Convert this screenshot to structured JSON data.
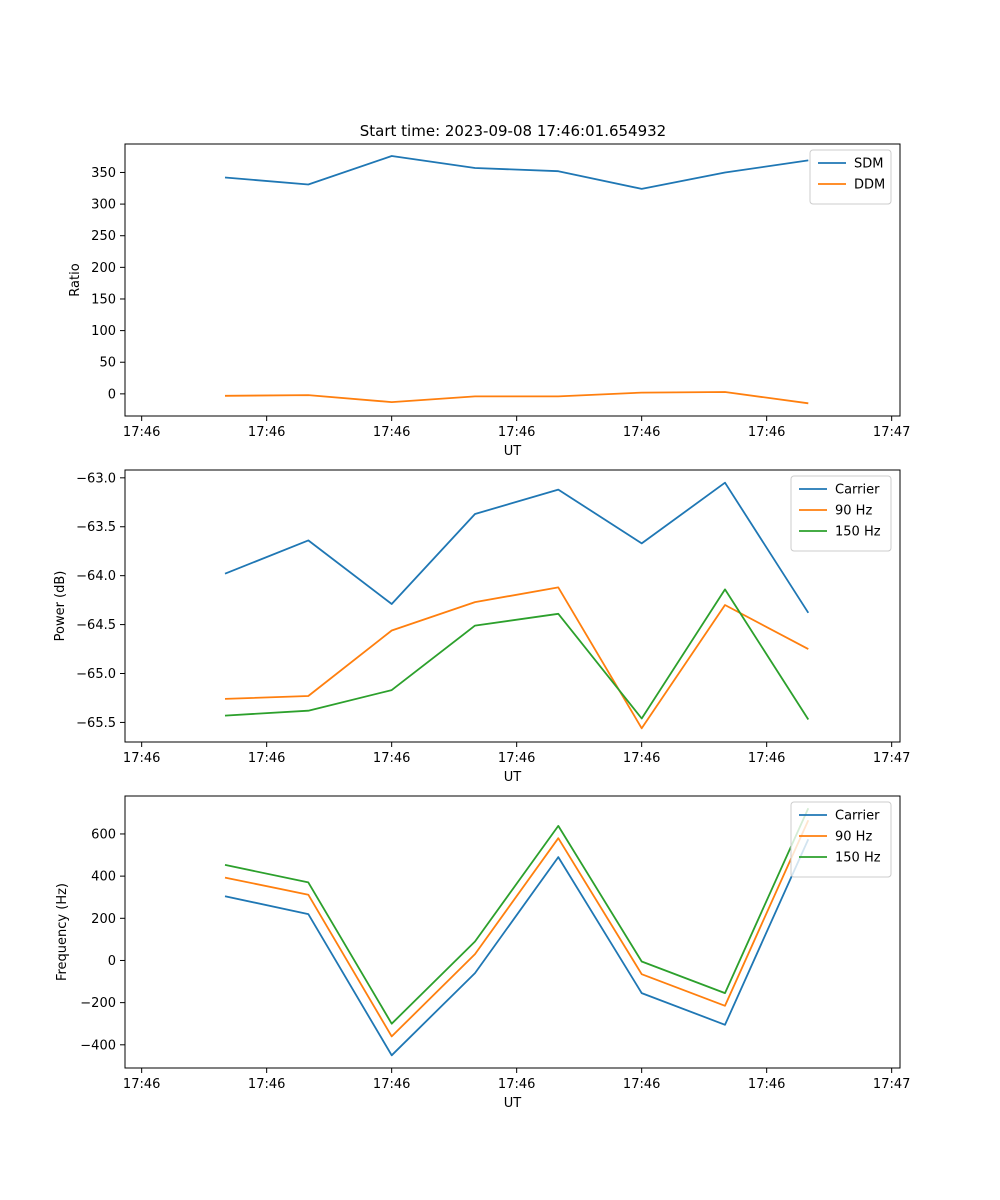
{
  "figure_title": "Start time: 2023-09-08 17:46:01.654932",
  "chart_data": [
    {
      "type": "line",
      "title": "Start time: 2023-09-08 17:46:01.654932",
      "xlabel": "UT",
      "ylabel": "Ratio",
      "x": [
        1,
        2,
        3,
        4,
        5,
        6,
        7,
        8
      ],
      "xlim": [
        -0.2,
        9.1
      ],
      "xticks": [
        0,
        1.5,
        3,
        4.5,
        6,
        7.5,
        9
      ],
      "xtick_labels": [
        "17:46",
        "17:46",
        "17:46",
        "17:46",
        "17:46",
        "17:46",
        "17:47"
      ],
      "ylim": [
        -35,
        395
      ],
      "yticks": [
        0,
        50,
        100,
        150,
        200,
        250,
        300,
        350
      ],
      "ytick_labels": [
        "0",
        "50",
        "100",
        "150",
        "200",
        "250",
        "300",
        "350"
      ],
      "legend_position": "top-right",
      "series": [
        {
          "name": "SDM",
          "color": "#1f77b4",
          "values": [
            342,
            331,
            376,
            357,
            352,
            324,
            350,
            369
          ]
        },
        {
          "name": "DDM",
          "color": "#ff7f0e",
          "values": [
            -3,
            -2,
            -13,
            -4,
            -4,
            2,
            3,
            -15
          ]
        }
      ]
    },
    {
      "type": "line",
      "title": "",
      "xlabel": "UT",
      "ylabel": "Power (dB)",
      "x": [
        1,
        2,
        3,
        4,
        5,
        6,
        7,
        8
      ],
      "xlim": [
        -0.2,
        9.1
      ],
      "xticks": [
        0,
        1.5,
        3,
        4.5,
        6,
        7.5,
        9
      ],
      "xtick_labels": [
        "17:46",
        "17:46",
        "17:46",
        "17:46",
        "17:46",
        "17:46",
        "17:47"
      ],
      "ylim": [
        -65.7,
        -62.92
      ],
      "yticks": [
        -65.5,
        -65.0,
        -64.5,
        -64.0,
        -63.5,
        -63.0
      ],
      "ytick_labels": [
        "−65.5",
        "−65.0",
        "−64.5",
        "−64.0",
        "−63.5",
        "−63.0"
      ],
      "legend_position": "top-right",
      "series": [
        {
          "name": "Carrier",
          "color": "#1f77b4",
          "values": [
            -63.98,
            -63.64,
            -64.29,
            -63.37,
            -63.12,
            -63.67,
            -63.05,
            -64.38
          ]
        },
        {
          "name": "90 Hz",
          "color": "#ff7f0e",
          "values": [
            -65.26,
            -65.23,
            -64.56,
            -64.27,
            -64.12,
            -65.56,
            -64.3,
            -64.75
          ]
        },
        {
          "name": "150 Hz",
          "color": "#2ca02c",
          "values": [
            -65.43,
            -65.38,
            -65.17,
            -64.51,
            -64.39,
            -65.46,
            -64.14,
            -65.47
          ]
        }
      ]
    },
    {
      "type": "line",
      "title": "",
      "xlabel": "UT",
      "ylabel": "Frequency (Hz)",
      "x": [
        1,
        2,
        3,
        4,
        5,
        6,
        7,
        8
      ],
      "xlim": [
        -0.2,
        9.1
      ],
      "xticks": [
        0,
        1.5,
        3,
        4.5,
        6,
        7.5,
        9
      ],
      "xtick_labels": [
        "17:46",
        "17:46",
        "17:46",
        "17:46",
        "17:46",
        "17:46",
        "17:47"
      ],
      "ylim": [
        -510,
        780
      ],
      "yticks": [
        -400,
        -200,
        0,
        200,
        400,
        600
      ],
      "ytick_labels": [
        "−400",
        "−200",
        "0",
        "200",
        "400",
        "600"
      ],
      "legend_position": "top-right",
      "series": [
        {
          "name": "Carrier",
          "color": "#1f77b4",
          "values": [
            305,
            220,
            -450,
            -60,
            490,
            -155,
            -305,
            575
          ]
        },
        {
          "name": "90 Hz",
          "color": "#ff7f0e",
          "values": [
            393,
            312,
            -360,
            30,
            580,
            -65,
            -215,
            665
          ]
        },
        {
          "name": "150 Hz",
          "color": "#2ca02c",
          "values": [
            453,
            370,
            -300,
            90,
            638,
            -5,
            -155,
            722
          ]
        }
      ]
    }
  ]
}
